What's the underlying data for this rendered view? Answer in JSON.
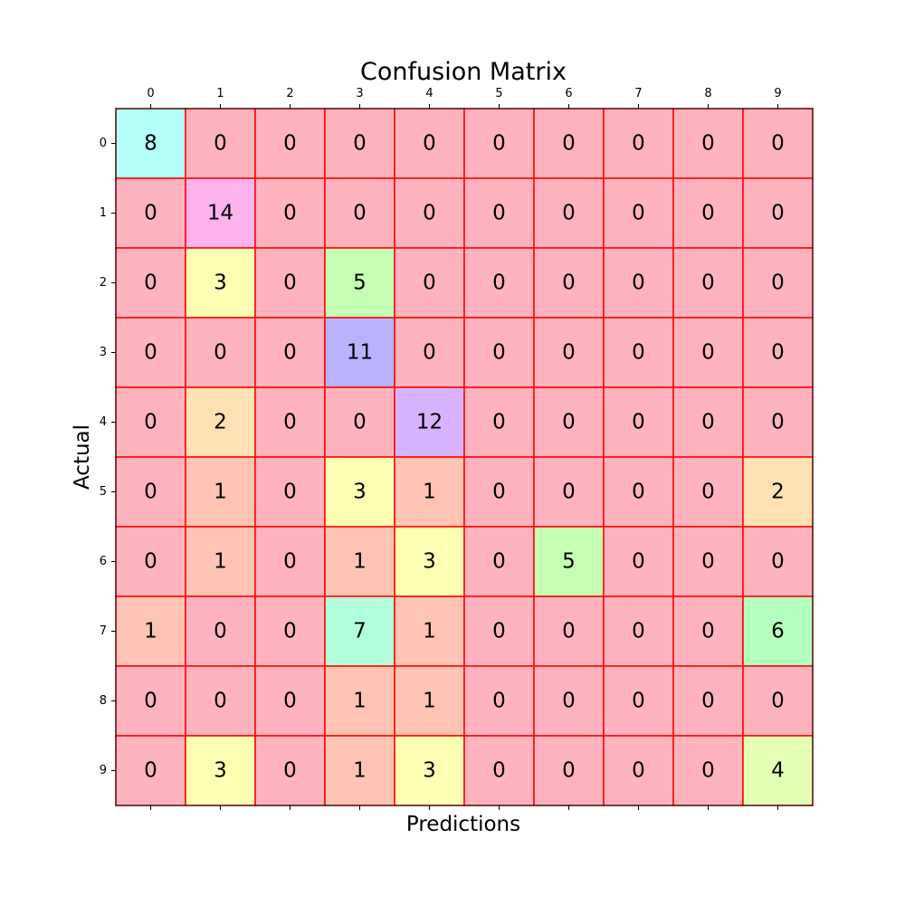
{
  "chart_data": {
    "type": "heatmap",
    "title": "Confusion Matrix",
    "xlabel": "Predictions",
    "ylabel": "Actual",
    "x_ticks": [
      "0",
      "1",
      "2",
      "3",
      "4",
      "5",
      "6",
      "7",
      "8",
      "9"
    ],
    "y_ticks": [
      "0",
      "1",
      "2",
      "3",
      "4",
      "5",
      "6",
      "7",
      "8",
      "9"
    ],
    "x_tick_position": "top",
    "matrix": [
      [
        8,
        0,
        0,
        0,
        0,
        0,
        0,
        0,
        0,
        0
      ],
      [
        0,
        14,
        0,
        0,
        0,
        0,
        0,
        0,
        0,
        0
      ],
      [
        0,
        3,
        0,
        5,
        0,
        0,
        0,
        0,
        0,
        0
      ],
      [
        0,
        0,
        0,
        11,
        0,
        0,
        0,
        0,
        0,
        0
      ],
      [
        0,
        2,
        0,
        0,
        12,
        0,
        0,
        0,
        0,
        0
      ],
      [
        0,
        1,
        0,
        3,
        1,
        0,
        0,
        0,
        0,
        2
      ],
      [
        0,
        1,
        0,
        1,
        3,
        0,
        5,
        0,
        0,
        0
      ],
      [
        1,
        0,
        0,
        7,
        1,
        0,
        0,
        0,
        0,
        6
      ],
      [
        0,
        0,
        0,
        1,
        1,
        0,
        0,
        0,
        0,
        0
      ],
      [
        0,
        3,
        0,
        1,
        3,
        0,
        0,
        0,
        0,
        4
      ]
    ],
    "vmin": 0,
    "vmax": 14,
    "colormap": "gist_rainbow",
    "cell_alpha": 0.3,
    "cell_border_color": "#ff0000",
    "grid": false
  }
}
